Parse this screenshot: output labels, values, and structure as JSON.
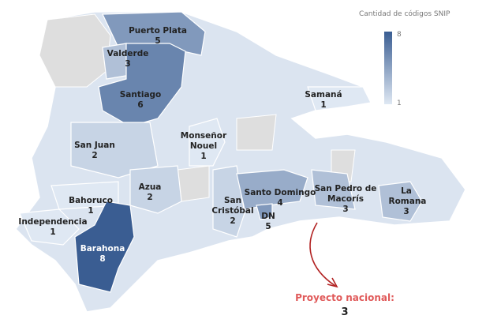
{
  "legend": {
    "title": "Cantidad de códigos SNIP",
    "min": 1,
    "max": 8,
    "min_color": "#dfe8f3",
    "max_color": "#3a5d92"
  },
  "regions": [
    {
      "name": "Puerto Plata",
      "value": 5
    },
    {
      "name": "Valderde",
      "value": 3
    },
    {
      "name": "Santiago",
      "value": 6
    },
    {
      "name": "Samaná",
      "value": 1
    },
    {
      "name": "Monseñor Nouel",
      "value": 1
    },
    {
      "name": "San Juan",
      "value": 2
    },
    {
      "name": "Azua",
      "value": 2
    },
    {
      "name": "Bahoruco",
      "value": 1
    },
    {
      "name": "Independencia",
      "value": 1
    },
    {
      "name": "Barahona",
      "value": 8
    },
    {
      "name": "San Cristóbal",
      "value": 2
    },
    {
      "name": "Santo Domingo",
      "value": 4
    },
    {
      "name": "DN",
      "value": 5
    },
    {
      "name": "San Pedro de Macorís",
      "value": 3
    },
    {
      "name": "La Romana",
      "value": 3
    }
  ],
  "annotation": {
    "label": "Proyecto nacional:",
    "value": 3
  }
}
